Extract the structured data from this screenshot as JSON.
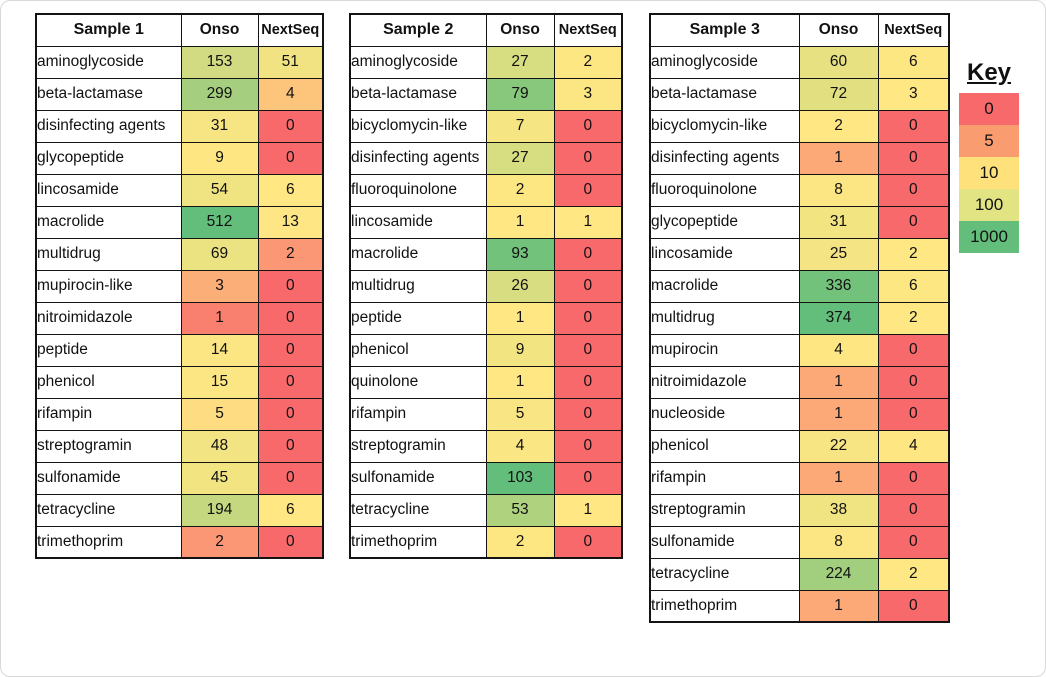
{
  "key": {
    "title": "Key",
    "entries": [
      {
        "label": "0",
        "color": "#F8696B"
      },
      {
        "label": "5",
        "color": "#F99D71"
      },
      {
        "label": "10",
        "color": "#FFE17C"
      },
      {
        "label": "100",
        "color": "#E2E383"
      },
      {
        "label": "1000",
        "color": "#63BE7B"
      }
    ]
  },
  "scale": {
    "min_color": "#F8696B",
    "mid_color": "#FFE783",
    "max_color": "#63BE7B",
    "midpoint_rule": "median of each table's values"
  },
  "chart_data": [
    {
      "type": "heatmap",
      "title": "Sample 1",
      "columns": [
        "Onso",
        "NextSeq"
      ],
      "rows": [
        "aminoglycoside",
        "beta-lactamase",
        "disinfecting agents",
        "glycopeptide",
        "lincosamide",
        "macrolide",
        "multidrug",
        "mupirocin-like",
        "nitroimidazole",
        "peptide",
        "phenicol",
        "rifampin",
        "streptogramin",
        "sulfonamide",
        "tetracycline",
        "trimethoprim"
      ],
      "values": [
        [
          153,
          51
        ],
        [
          299,
          4
        ],
        [
          31,
          0
        ],
        [
          9,
          0
        ],
        [
          54,
          6
        ],
        [
          512,
          13
        ],
        [
          69,
          2
        ],
        [
          3,
          0
        ],
        [
          1,
          0
        ],
        [
          14,
          0
        ],
        [
          15,
          0
        ],
        [
          5,
          0
        ],
        [
          48,
          0
        ],
        [
          45,
          0
        ],
        [
          194,
          6
        ],
        [
          2,
          0
        ]
      ]
    },
    {
      "type": "heatmap",
      "title": "Sample 2",
      "columns": [
        "Onso",
        "NextSeq"
      ],
      "rows": [
        "aminoglycoside",
        "beta-lactamase",
        "bicyclomycin-like",
        "disinfecting agents",
        "fluoroquinolone",
        "lincosamide",
        "macrolide",
        "multidrug",
        "peptide",
        "phenicol",
        "quinolone",
        "rifampin",
        "streptogramin",
        "sulfonamide",
        "tetracycline",
        "trimethoprim"
      ],
      "values": [
        [
          27,
          2
        ],
        [
          79,
          3
        ],
        [
          7,
          0
        ],
        [
          27,
          0
        ],
        [
          2,
          0
        ],
        [
          1,
          1
        ],
        [
          93,
          0
        ],
        [
          26,
          0
        ],
        [
          1,
          0
        ],
        [
          9,
          0
        ],
        [
          1,
          0
        ],
        [
          5,
          0
        ],
        [
          4,
          0
        ],
        [
          103,
          0
        ],
        [
          53,
          1
        ],
        [
          2,
          0
        ]
      ]
    },
    {
      "type": "heatmap",
      "title": "Sample 3",
      "columns": [
        "Onso",
        "NextSeq"
      ],
      "rows": [
        "aminoglycoside",
        "beta-lactamase",
        "bicyclomycin-like",
        "disinfecting agents",
        "fluoroquinolone",
        "glycopeptide",
        "lincosamide",
        "macrolide",
        "multidrug",
        "mupirocin",
        "nitroimidazole",
        "nucleoside",
        "phenicol",
        "rifampin",
        "streptogramin",
        "sulfonamide",
        "tetracycline",
        "trimethoprim"
      ],
      "values": [
        [
          60,
          6
        ],
        [
          72,
          3
        ],
        [
          2,
          0
        ],
        [
          1,
          0
        ],
        [
          8,
          0
        ],
        [
          31,
          0
        ],
        [
          25,
          2
        ],
        [
          336,
          6
        ],
        [
          374,
          2
        ],
        [
          4,
          0
        ],
        [
          1,
          0
        ],
        [
          1,
          0
        ],
        [
          22,
          4
        ],
        [
          1,
          0
        ],
        [
          38,
          0
        ],
        [
          8,
          0
        ],
        [
          224,
          2
        ],
        [
          1,
          0
        ]
      ]
    }
  ]
}
